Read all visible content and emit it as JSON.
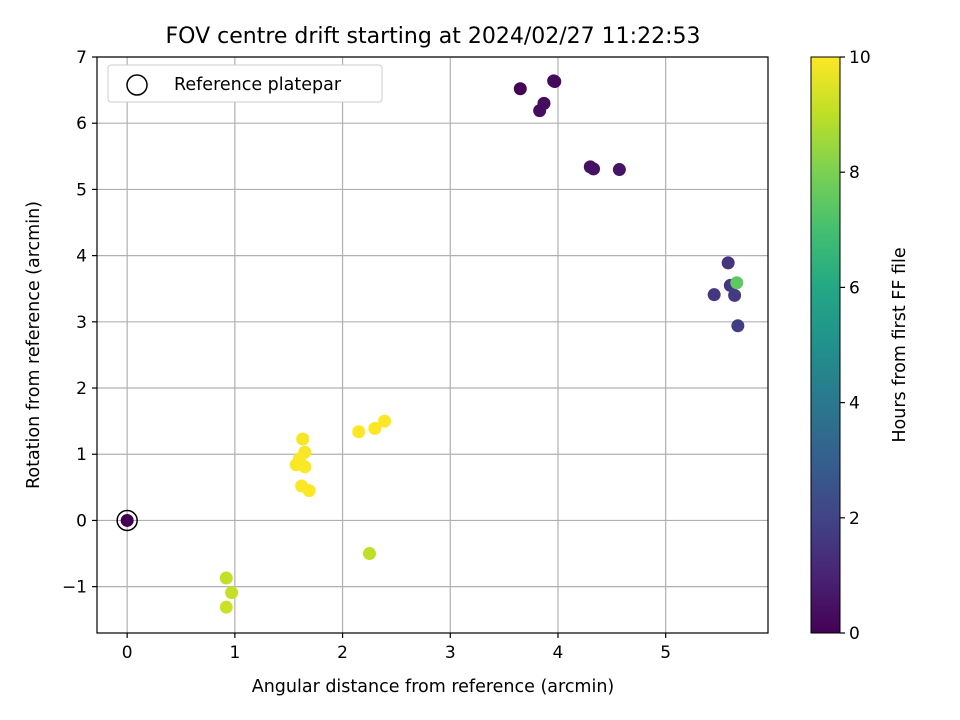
{
  "chart_data": {
    "type": "scatter",
    "title": "FOV centre drift starting at 2024/02/27 11:22:53",
    "xlabel": "Angular distance from reference (arcmin)",
    "ylabel": "Rotation from reference (arcmin)",
    "xlim": [
      -0.28,
      5.95
    ],
    "ylim": [
      -1.7,
      7.0
    ],
    "xticks": [
      0,
      1,
      2,
      3,
      4,
      5
    ],
    "xtick_labels": [
      "0",
      "1",
      "2",
      "3",
      "4",
      "5"
    ],
    "yticks": [
      -1,
      0,
      1,
      2,
      3,
      4,
      5,
      6,
      7
    ],
    "ytick_labels": [
      "−1",
      "0",
      "1",
      "2",
      "3",
      "4",
      "5",
      "6",
      "7"
    ],
    "grid": true,
    "legend": {
      "placement": "top-left",
      "entries": [
        "Reference platepar"
      ]
    },
    "reference_point": {
      "x": 0,
      "y": 0
    },
    "colorbar": {
      "label": "Hours from first FF file",
      "range": [
        0,
        10
      ],
      "ticks": [
        0,
        2,
        4,
        6,
        8,
        10
      ],
      "tick_labels": [
        "0",
        "2",
        "4",
        "6",
        "8",
        "10"
      ],
      "colormap": "viridis"
    },
    "points": [
      {
        "x": 0.0,
        "y": 0.0,
        "hours": 0.0
      },
      {
        "x": 3.65,
        "y": 6.52,
        "hours": 0.1
      },
      {
        "x": 3.97,
        "y": 6.63,
        "hours": 0.2
      },
      {
        "x": 3.96,
        "y": 6.64,
        "hours": 0.25
      },
      {
        "x": 3.87,
        "y": 6.3,
        "hours": 0.3
      },
      {
        "x": 3.83,
        "y": 6.19,
        "hours": 0.35
      },
      {
        "x": 4.3,
        "y": 5.34,
        "hours": 0.4
      },
      {
        "x": 4.33,
        "y": 5.31,
        "hours": 0.45
      },
      {
        "x": 4.57,
        "y": 5.3,
        "hours": 0.5
      },
      {
        "x": 5.58,
        "y": 3.89,
        "hours": 1.5
      },
      {
        "x": 5.6,
        "y": 3.55,
        "hours": 1.6
      },
      {
        "x": 5.45,
        "y": 3.41,
        "hours": 1.6
      },
      {
        "x": 5.64,
        "y": 3.4,
        "hours": 1.7
      },
      {
        "x": 5.67,
        "y": 2.94,
        "hours": 1.8
      },
      {
        "x": 5.66,
        "y": 3.59,
        "hours": 7.5
      },
      {
        "x": 2.25,
        "y": -0.5,
        "hours": 9.0
      },
      {
        "x": 0.92,
        "y": -0.87,
        "hours": 9.1
      },
      {
        "x": 0.97,
        "y": -1.09,
        "hours": 9.1
      },
      {
        "x": 0.92,
        "y": -1.31,
        "hours": 9.2
      },
      {
        "x": 1.63,
        "y": 1.23,
        "hours": 9.9
      },
      {
        "x": 1.65,
        "y": 1.03,
        "hours": 9.9
      },
      {
        "x": 1.6,
        "y": 0.93,
        "hours": 9.95
      },
      {
        "x": 1.57,
        "y": 0.84,
        "hours": 9.95
      },
      {
        "x": 1.65,
        "y": 0.81,
        "hours": 9.95
      },
      {
        "x": 1.62,
        "y": 0.52,
        "hours": 10.0
      },
      {
        "x": 1.69,
        "y": 0.45,
        "hours": 10.0
      },
      {
        "x": 2.15,
        "y": 1.34,
        "hours": 10.0
      },
      {
        "x": 2.3,
        "y": 1.39,
        "hours": 10.0
      },
      {
        "x": 2.39,
        "y": 1.5,
        "hours": 10.0
      }
    ]
  }
}
